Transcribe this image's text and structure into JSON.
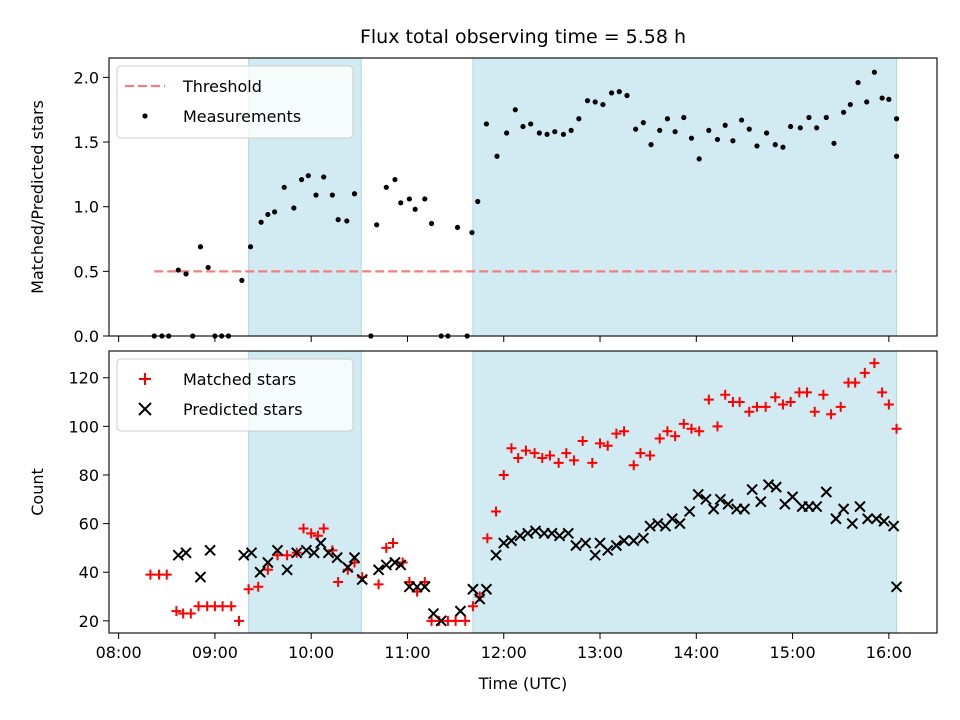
{
  "title": "Flux total observing time = 5.58 h",
  "colors": {
    "threshold": "#f08080",
    "measurement": "#000000",
    "matched": "#ff0000",
    "predicted": "#000000",
    "shade": "#add8e6"
  },
  "chart_data": [
    {
      "type": "scatter",
      "ylabel": "Matched/Predicted stars",
      "xlabel": "",
      "xlim_hours": [
        7.9,
        16.5
      ],
      "ylim": [
        0,
        2.15
      ],
      "yticks": [
        "0.0",
        "0.5",
        "1.0",
        "1.5",
        "2.0"
      ],
      "ytick_values": [
        0,
        0.5,
        1.0,
        1.5,
        2.0
      ],
      "legend_position": "upper-left",
      "shaded_hours": [
        [
          9.35,
          10.52
        ],
        [
          11.68,
          16.08
        ]
      ],
      "threshold": {
        "name": "Threshold",
        "value": 0.5,
        "x_hours": [
          8.37,
          16.08
        ]
      },
      "series": [
        {
          "name": "Measurements",
          "x_hours": [
            8.37,
            8.45,
            8.52,
            8.62,
            8.7,
            8.77,
            8.85,
            8.93,
            9.0,
            9.07,
            9.14,
            9.28,
            9.37,
            9.48,
            9.55,
            9.62,
            9.72,
            9.82,
            9.9,
            9.97,
            10.05,
            10.13,
            10.22,
            10.28,
            10.37,
            10.45,
            10.62,
            10.68,
            10.78,
            10.87,
            10.93,
            11.02,
            11.08,
            11.18,
            11.25,
            11.35,
            11.42,
            11.52,
            11.62,
            11.67,
            11.73,
            11.82,
            11.93,
            12.03,
            12.12,
            12.2,
            12.28,
            12.37,
            12.45,
            12.53,
            12.62,
            12.7,
            12.78,
            12.87,
            12.95,
            13.03,
            13.12,
            13.2,
            13.28,
            13.37,
            13.45,
            13.53,
            13.62,
            13.7,
            13.78,
            13.87,
            13.95,
            14.03,
            14.13,
            14.22,
            14.3,
            14.38,
            14.47,
            14.55,
            14.63,
            14.73,
            14.82,
            14.9,
            14.98,
            15.08,
            15.17,
            15.25,
            15.35,
            15.43,
            15.53,
            15.6,
            15.68,
            15.77,
            15.85,
            15.93,
            16.0,
            16.08
          ],
          "y": [
            0,
            0,
            0,
            0.51,
            0.48,
            0,
            0.69,
            0.53,
            0,
            0,
            0,
            0.43,
            0.69,
            0.88,
            0.94,
            0.96,
            1.15,
            0.99,
            1.21,
            1.24,
            1.09,
            1.23,
            1.09,
            0.9,
            0.89,
            1.1,
            0,
            0.86,
            1.15,
            1.21,
            1.03,
            1.06,
            0.98,
            1.06,
            0.87,
            0,
            0,
            0.84,
            0,
            0.8,
            1.04,
            1.64,
            1.39,
            1.57,
            1.75,
            1.62,
            1.64,
            1.57,
            1.56,
            1.58,
            1.56,
            1.59,
            1.68,
            1.82,
            1.81,
            1.79,
            1.88,
            1.89,
            1.86,
            1.6,
            1.65,
            1.48,
            1.59,
            1.68,
            1.58,
            1.69,
            1.53,
            1.37,
            1.59,
            1.52,
            1.63,
            1.51,
            1.67,
            1.6,
            1.47,
            1.57,
            1.48,
            1.46,
            1.62,
            1.61,
            1.69,
            1.61,
            1.69,
            1.49,
            1.73,
            1.79,
            1.96,
            1.81,
            2.04,
            1.84,
            1.83,
            1.68
          ]
        },
        {
          "name": "",
          "x_hours": [
            16.08
          ],
          "y": [
            1.39
          ]
        }
      ]
    },
    {
      "type": "scatter",
      "ylabel": "Count",
      "xlabel": "Time (UTC)",
      "xlim_hours": [
        7.9,
        16.5
      ],
      "ylim": [
        15,
        131
      ],
      "yticks": [
        "20",
        "40",
        "60",
        "80",
        "100",
        "120"
      ],
      "ytick_values": [
        20,
        40,
        60,
        80,
        100,
        120
      ],
      "xticks": [
        "08:00",
        "09:00",
        "10:00",
        "11:00",
        "12:00",
        "13:00",
        "14:00",
        "15:00",
        "16:00"
      ],
      "xtick_hours": [
        8,
        9,
        10,
        11,
        12,
        13,
        14,
        15,
        16
      ],
      "legend_position": "upper-left",
      "shaded_hours": [
        [
          9.35,
          10.52
        ],
        [
          11.68,
          16.08
        ]
      ],
      "series": [
        {
          "name": "Matched stars",
          "marker": "plus",
          "x_hours": [
            8.33,
            8.42,
            8.5,
            8.6,
            8.67,
            8.75,
            8.83,
            8.92,
            9.0,
            9.08,
            9.17,
            9.25,
            9.35,
            9.45,
            9.55,
            9.65,
            9.75,
            9.85,
            9.92,
            10.0,
            10.07,
            10.13,
            10.22,
            10.28,
            10.38,
            10.45,
            10.53,
            10.7,
            10.78,
            10.85,
            10.95,
            11.02,
            11.1,
            11.18,
            11.25,
            11.33,
            11.42,
            11.5,
            11.6,
            11.68,
            11.75,
            11.83,
            11.92,
            12.0,
            12.08,
            12.15,
            12.23,
            12.32,
            12.4,
            12.48,
            12.57,
            12.65,
            12.73,
            12.82,
            12.92,
            13.0,
            13.08,
            13.17,
            13.25,
            13.35,
            13.42,
            13.52,
            13.62,
            13.7,
            13.78,
            13.87,
            13.95,
            14.03,
            14.13,
            14.22,
            14.3,
            14.38,
            14.45,
            14.55,
            14.63,
            14.72,
            14.82,
            14.9,
            14.98,
            15.07,
            15.15,
            15.23,
            15.32,
            15.4,
            15.5,
            15.58,
            15.65,
            15.75,
            15.85,
            15.93,
            16.0,
            16.08
          ],
          "y": [
            39,
            39,
            39,
            24,
            23,
            23,
            26,
            26,
            26,
            26,
            26,
            20,
            33,
            34,
            41,
            47,
            47,
            48,
            58,
            56,
            55,
            58,
            49,
            36,
            41,
            44,
            38,
            35,
            50,
            52,
            44,
            36,
            32,
            36,
            20,
            20,
            20,
            20,
            20,
            26,
            30,
            54,
            65,
            80,
            91,
            87,
            90,
            89,
            87,
            88,
            85,
            89,
            86,
            94,
            85,
            93,
            92,
            97,
            98,
            84,
            89,
            88,
            95,
            98,
            96,
            101,
            99,
            98,
            111,
            100,
            113,
            110,
            110,
            106,
            108,
            108,
            112,
            109,
            110,
            114,
            114,
            106,
            113,
            105,
            108,
            118,
            118,
            122,
            126,
            114,
            109,
            99
          ]
        },
        {
          "name": "Predicted stars",
          "marker": "x",
          "x_hours": [
            8.62,
            8.7,
            8.85,
            8.95,
            9.3,
            9.38,
            9.47,
            9.55,
            9.65,
            9.75,
            9.85,
            9.95,
            10.03,
            10.1,
            10.18,
            10.27,
            10.38,
            10.45,
            10.53,
            10.7,
            10.78,
            10.87,
            10.93,
            11.02,
            11.1,
            11.18,
            11.27,
            11.35,
            11.55,
            11.68,
            11.75,
            11.82,
            11.92,
            12.0,
            12.08,
            12.17,
            12.25,
            12.33,
            12.42,
            12.5,
            12.58,
            12.67,
            12.75,
            12.85,
            12.95,
            13.0,
            13.08,
            13.17,
            13.25,
            13.35,
            13.45,
            13.52,
            13.6,
            13.68,
            13.75,
            13.83,
            13.93,
            14.02,
            14.1,
            14.18,
            14.25,
            14.33,
            14.42,
            14.5,
            14.58,
            14.67,
            14.75,
            14.83,
            14.92,
            15.0,
            15.1,
            15.17,
            15.25,
            15.35,
            15.45,
            15.53,
            15.62,
            15.7,
            15.78,
            15.87,
            15.95,
            16.05,
            16.08
          ],
          "y": [
            47,
            48,
            38,
            49,
            47,
            48,
            40,
            44,
            49,
            41,
            48,
            49,
            48,
            52,
            48,
            46,
            42,
            46,
            37,
            41,
            43,
            44,
            43,
            34,
            34,
            34,
            23,
            20,
            24,
            33,
            29,
            33,
            47,
            52,
            53,
            55,
            56,
            57,
            56,
            56,
            55,
            56,
            51,
            52,
            47,
            52,
            49,
            51,
            53,
            53,
            54,
            59,
            60,
            59,
            62,
            60,
            65,
            72,
            70,
            66,
            70,
            68,
            66,
            66,
            74,
            69,
            76,
            75,
            68,
            71,
            67,
            67,
            67,
            73,
            62,
            66,
            60,
            67,
            62,
            62,
            61,
            59,
            34
          ]
        }
      ]
    }
  ]
}
